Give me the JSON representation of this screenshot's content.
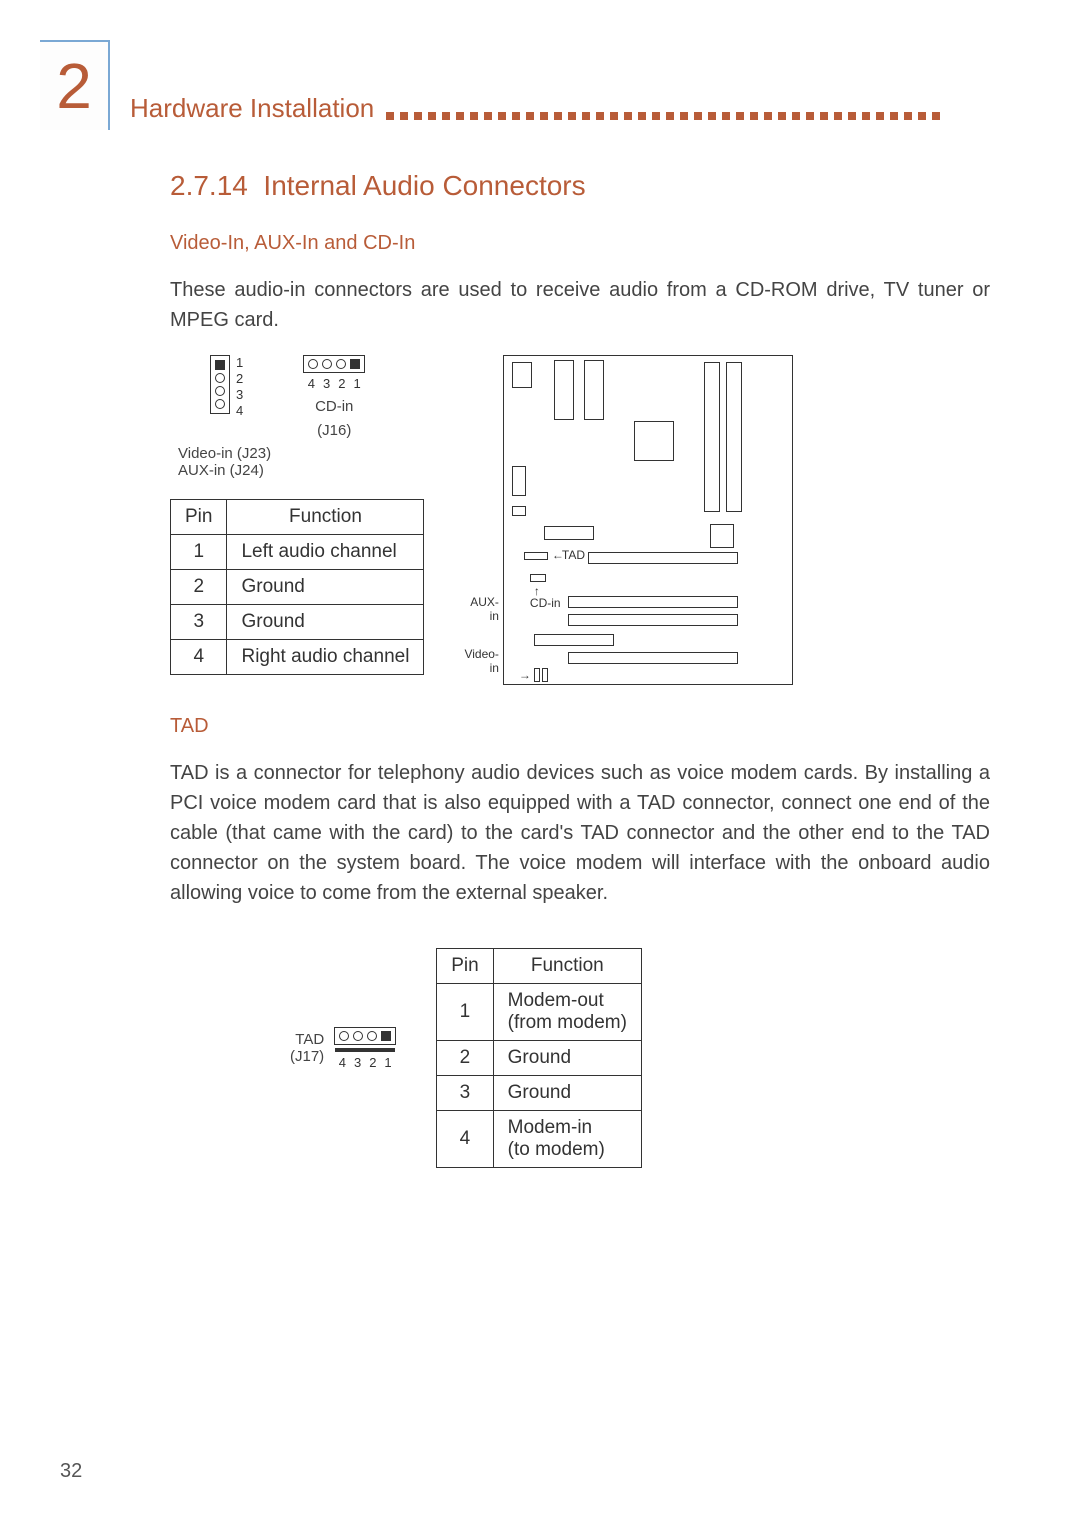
{
  "chapter": {
    "number": "2",
    "title": "Hardware Installation"
  },
  "section": {
    "number": "2.7.14",
    "title": "Internal Audio Connectors"
  },
  "sub1": {
    "heading": "Video-In, AUX-In and CD-In",
    "text": "These audio-in connectors are used to receive audio from a CD-ROM drive, TV tuner or MPEG card."
  },
  "connectors": {
    "vert_pins": [
      "1",
      "2",
      "3",
      "4"
    ],
    "vert_label1": "Video-in (J23)",
    "vert_label2": "AUX-in (J24)",
    "horiz_pins": [
      "4",
      "3",
      "2",
      "1"
    ],
    "horiz_label1": "CD-in",
    "horiz_label2": "(J16)"
  },
  "table1": {
    "headers": [
      "Pin",
      "Function"
    ],
    "rows": [
      [
        "1",
        "Left audio channel"
      ],
      [
        "2",
        "Ground"
      ],
      [
        "3",
        "Ground"
      ],
      [
        "4",
        "Right audio channel"
      ]
    ]
  },
  "board_labels": {
    "tad": "TAD",
    "cdin": "CD-in",
    "aux": "AUX-\nin",
    "video": "Video-\nin"
  },
  "sub2": {
    "heading": "TAD",
    "text": "TAD is a connector for telephony audio devices such as voice modem cards. By installing a PCI voice modem card that is also equipped with a TAD connector, connect one end of the cable (that came with the card) to the card's TAD connector and the other end to the TAD connector on the system board. The voice modem will interface with the onboard audio allowing voice to come from the external speaker."
  },
  "tad_conn": {
    "label1": "TAD",
    "label2": "(J17)",
    "pins": [
      "4",
      "3",
      "2",
      "1"
    ]
  },
  "table2": {
    "headers": [
      "Pin",
      "Function"
    ],
    "rows": [
      [
        "1",
        "Modem-out\n(from modem)"
      ],
      [
        "2",
        "Ground"
      ],
      [
        "3",
        "Ground"
      ],
      [
        "4",
        "Modem-in\n(to modem)"
      ]
    ]
  },
  "page_number": "32",
  "colors": {
    "accent": "#b85c38",
    "header_blue": "#7aa8d4",
    "text": "#444444",
    "border": "#333333"
  }
}
